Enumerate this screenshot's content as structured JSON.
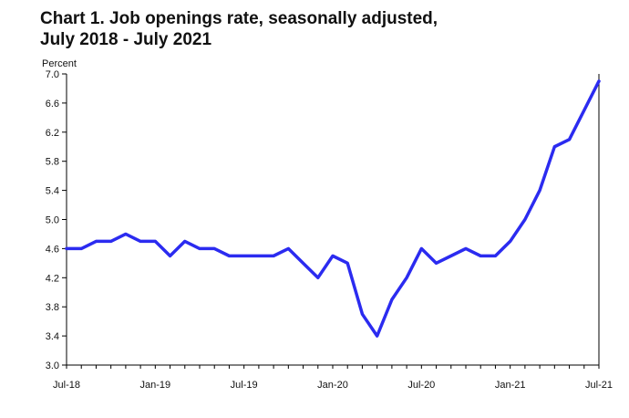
{
  "chart_data": {
    "type": "line",
    "title_line1": "Chart 1. Job openings rate, seasonally adjusted,",
    "title_line2": "July 2018 - July 2021",
    "ylabel": "Percent",
    "xlabel": "",
    "ylim": [
      3.0,
      7.0
    ],
    "y_ticks": [
      "7.0",
      "6.6",
      "6.2",
      "5.8",
      "5.4",
      "5.0",
      "4.6",
      "4.2",
      "3.8",
      "3.4",
      "3.0"
    ],
    "x_tick_labels": [
      "Jul-18",
      "Jan-19",
      "Jul-19",
      "Jan-20",
      "Jul-20",
      "Jan-21",
      "Jul-21"
    ],
    "x_tick_months": [
      "2018-07",
      "2019-01",
      "2019-07",
      "2020-01",
      "2020-07",
      "2021-01",
      "2021-07"
    ],
    "line_color": "#2b2bf0",
    "grid": false,
    "x": [
      "2018-07",
      "2018-08",
      "2018-09",
      "2018-10",
      "2018-11",
      "2018-12",
      "2019-01",
      "2019-02",
      "2019-03",
      "2019-04",
      "2019-05",
      "2019-06",
      "2019-07",
      "2019-08",
      "2019-09",
      "2019-10",
      "2019-11",
      "2019-12",
      "2020-01",
      "2020-02",
      "2020-03",
      "2020-04",
      "2020-05",
      "2020-06",
      "2020-07",
      "2020-08",
      "2020-09",
      "2020-10",
      "2020-11",
      "2020-12",
      "2021-01",
      "2021-02",
      "2021-03",
      "2021-04",
      "2021-05",
      "2021-06",
      "2021-07"
    ],
    "series": [
      {
        "values": [
          4.6,
          4.6,
          4.7,
          4.7,
          4.8,
          4.7,
          4.7,
          4.5,
          4.7,
          4.6,
          4.6,
          4.5,
          4.5,
          4.5,
          4.5,
          4.6,
          4.4,
          4.2,
          4.5,
          4.4,
          3.7,
          3.4,
          3.9,
          4.2,
          4.6,
          4.4,
          4.5,
          4.6,
          4.5,
          4.5,
          4.7,
          5.0,
          5.4,
          6.0,
          6.1,
          6.5,
          6.9
        ]
      }
    ]
  }
}
